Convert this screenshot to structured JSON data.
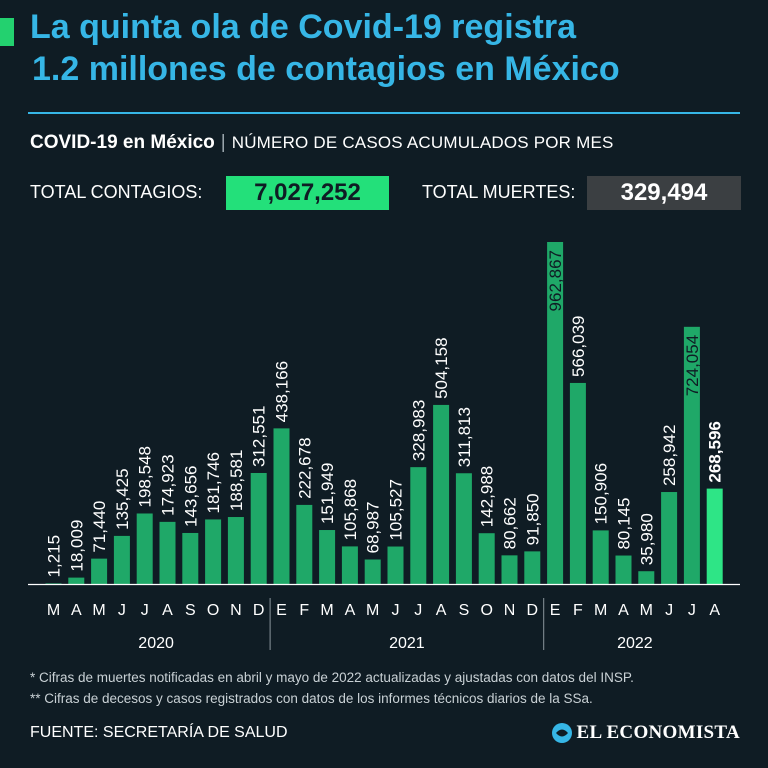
{
  "header": {
    "title_line1": "La quinta ola de Covid-19 registra",
    "title_line2": "1.2 millones de contagios en México",
    "subtitle_bold": "COVID-19 en México",
    "subtitle_sep": "|",
    "subtitle_rest": "NÚMERO DE CASOS ACUMULADOS POR MES"
  },
  "stats": {
    "contagios_label": "TOTAL CONTAGIOS:",
    "contagios_value": "7,027,252",
    "muertes_label": "TOTAL MUERTES:",
    "muertes_value": "329,494"
  },
  "chart_data": {
    "type": "bar",
    "title": "NÚMERO DE CASOS ACUMULADOS POR MES",
    "xlabel": "",
    "ylabel": "",
    "ylim": [
      0,
      1000000
    ],
    "categories": [
      "M",
      "A",
      "M",
      "J",
      "J",
      "A",
      "S",
      "O",
      "N",
      "D",
      "E",
      "F",
      "M",
      "A",
      "M",
      "J",
      "J",
      "A",
      "S",
      "O",
      "N",
      "D",
      "E",
      "F",
      "M",
      "A",
      "M",
      "J",
      "J",
      "A"
    ],
    "values": [
      1215,
      18009,
      71440,
      135425,
      198548,
      174923,
      143656,
      181746,
      188581,
      312551,
      438166,
      222678,
      151949,
      105868,
      68987,
      105527,
      328983,
      504158,
      311813,
      142988,
      80662,
      91850,
      962867,
      566039,
      150906,
      80145,
      35980,
      258942,
      724054,
      268596
    ],
    "labels": [
      "1,215",
      "18,009",
      "71,440",
      "135,425",
      "198,548",
      "174,923",
      "143,656",
      "181,746",
      "188,581",
      "312,551",
      "438,166",
      "222,678",
      "151,949",
      "105,868",
      "68,987",
      "105,527",
      "328,983",
      "504,158",
      "311,813",
      "142,988",
      "80,662",
      "91,850",
      "962,867",
      "566,039",
      "150,906",
      "80,145",
      "35,980",
      "258,942",
      "724,054",
      "268,596"
    ],
    "years": [
      {
        "label": "2020",
        "start": 0,
        "end": 9
      },
      {
        "label": "2021",
        "start": 10,
        "end": 21
      },
      {
        "label": "2022",
        "start": 22,
        "end": 29
      }
    ],
    "bar_color": "#1fa868",
    "highlight_color": "#2ee586",
    "highlight_index": 29
  },
  "notes": {
    "note1": "* Cifras de muertes notificadas en abril y mayo de 2022 actualizadas y ajustadas con datos del INSP.",
    "note2": "** Cifras de decesos y casos registrados con datos de los informes técnicos diarios de la SSa."
  },
  "footer": {
    "source": "FUENTE: SECRETARÍA DE SALUD",
    "logo_text": "EL ECONOMISTA"
  }
}
